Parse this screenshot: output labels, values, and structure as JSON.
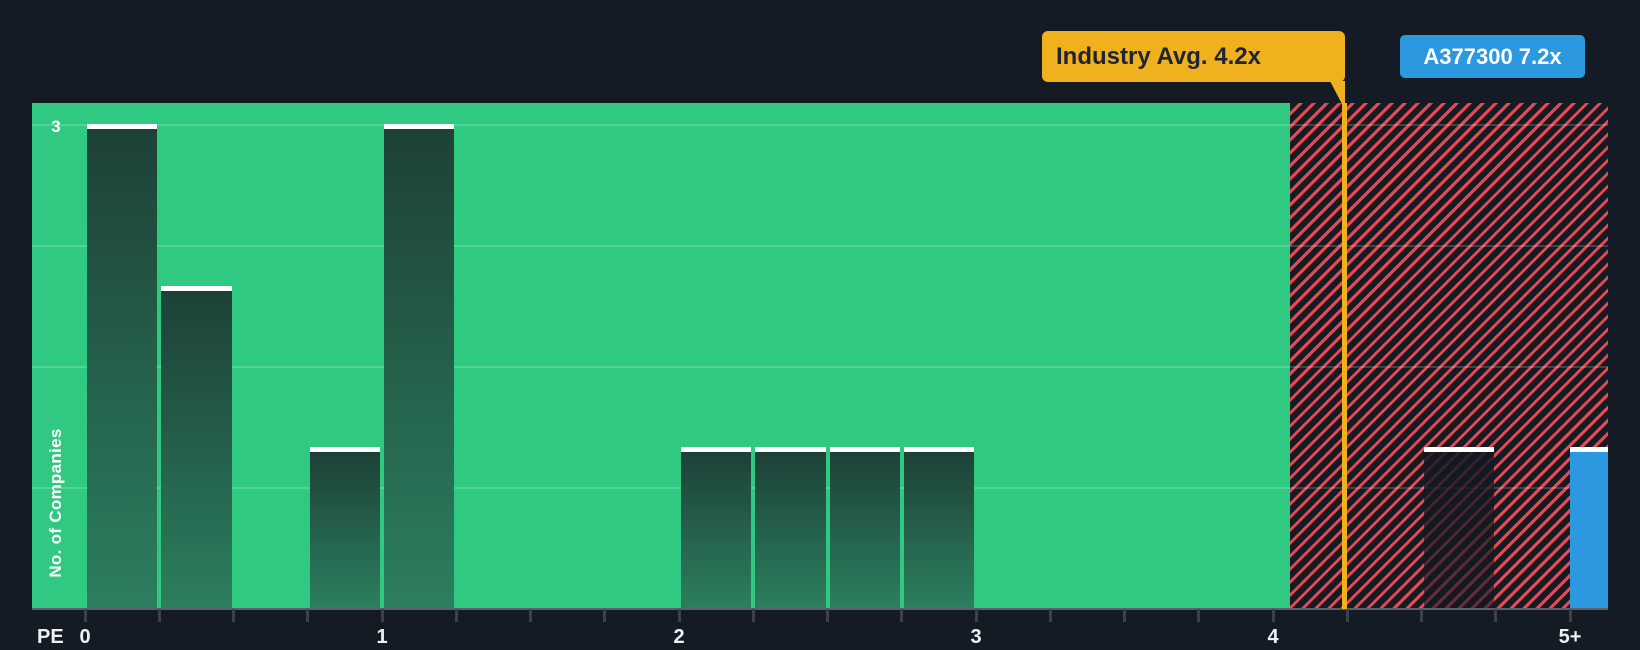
{
  "chart_data": {
    "type": "bar",
    "subtype": "histogram",
    "xlabel": "PE",
    "ylabel": "No. of Companies",
    "xlim": [
      -0.18,
      5.13
    ],
    "ylim": [
      0,
      3.13
    ],
    "grid": true,
    "legend_position": "none",
    "bin_width": 0.25,
    "minor_tick_step": 0.25,
    "x_ticks": [
      {
        "value": 0,
        "label": "0"
      },
      {
        "value": 1,
        "label": "1"
      },
      {
        "value": 2,
        "label": "2"
      },
      {
        "value": 3,
        "label": "3"
      },
      {
        "value": 4,
        "label": "4"
      },
      {
        "value": 5,
        "label": "5+"
      }
    ],
    "y_ticks": [
      {
        "value": 3,
        "label": "3"
      }
    ],
    "gridline_values": [
      0.75,
      1.5,
      2.25,
      3
    ],
    "bars": [
      {
        "from": 0.0,
        "to": 0.25,
        "count": 3,
        "zone": "below-avg"
      },
      {
        "from": 0.25,
        "to": 0.5,
        "count": 2,
        "zone": "below-avg"
      },
      {
        "from": 0.75,
        "to": 1.0,
        "count": 1,
        "zone": "below-avg"
      },
      {
        "from": 1.0,
        "to": 1.25,
        "count": 3,
        "zone": "below-avg"
      },
      {
        "from": 2.0,
        "to": 2.25,
        "count": 1,
        "zone": "below-avg"
      },
      {
        "from": 2.25,
        "to": 2.5,
        "count": 1,
        "zone": "below-avg"
      },
      {
        "from": 2.5,
        "to": 2.75,
        "count": 1,
        "zone": "below-avg"
      },
      {
        "from": 2.75,
        "to": 3.0,
        "count": 1,
        "zone": "below-avg"
      },
      {
        "from": 4.5,
        "to": 4.75,
        "count": 1,
        "zone": "above-avg"
      },
      {
        "from": 5.0,
        "to": 5.13,
        "count": 1,
        "zone": "company"
      }
    ],
    "industry_avg": {
      "label": "Industry Avg. 4.2x",
      "value": 4.2
    },
    "company": {
      "label": "A377300 7.2x",
      "name": "A377300",
      "value": 7.2
    },
    "zones": {
      "below_average": "solid green",
      "above_average": "red hatched"
    },
    "colors": {
      "page_bg": "#151b24",
      "plot_green": "#2fc981",
      "bar_gradient_top": "#1d4137",
      "bar_gradient_bottom": "#2c7f5e",
      "bar_cap_white": "#ffffff",
      "avg_yellow": "#efb11e",
      "company_blue": "#2b98e0",
      "hatch_red": "#e84850",
      "hatch_bg": "#151b24",
      "axis_text": "#eef1f4"
    }
  }
}
